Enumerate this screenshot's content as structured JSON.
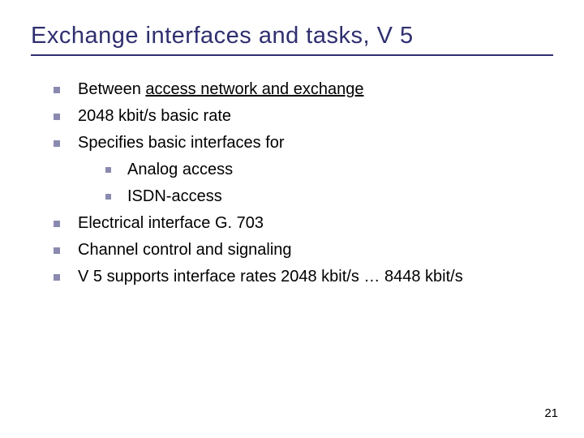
{
  "title": "Exchange interfaces and tasks, V 5",
  "bullets": {
    "b0_pre": "Between ",
    "b0_underlined": "access network and exchange",
    "b1": "2048 kbit/s basic rate",
    "b2": "Specifies basic interfaces for",
    "s0": "Analog access",
    "s1": "ISDN-access",
    "b3": "Electrical interface G. 703",
    "b4": "Channel control and signaling",
    "b5": "V 5 supports interface rates 2048 kbit/s … 8448 kbit/s"
  },
  "pageNumber": "21",
  "colors": {
    "titleColor": "#2f2f6f",
    "bulletColor": "#8a8ab0",
    "textColor": "#000000",
    "background": "#ffffff"
  },
  "typography": {
    "titleSize": 29,
    "bodySize": 20,
    "pageNumSize": 15,
    "fontFamily": "Verdana"
  }
}
